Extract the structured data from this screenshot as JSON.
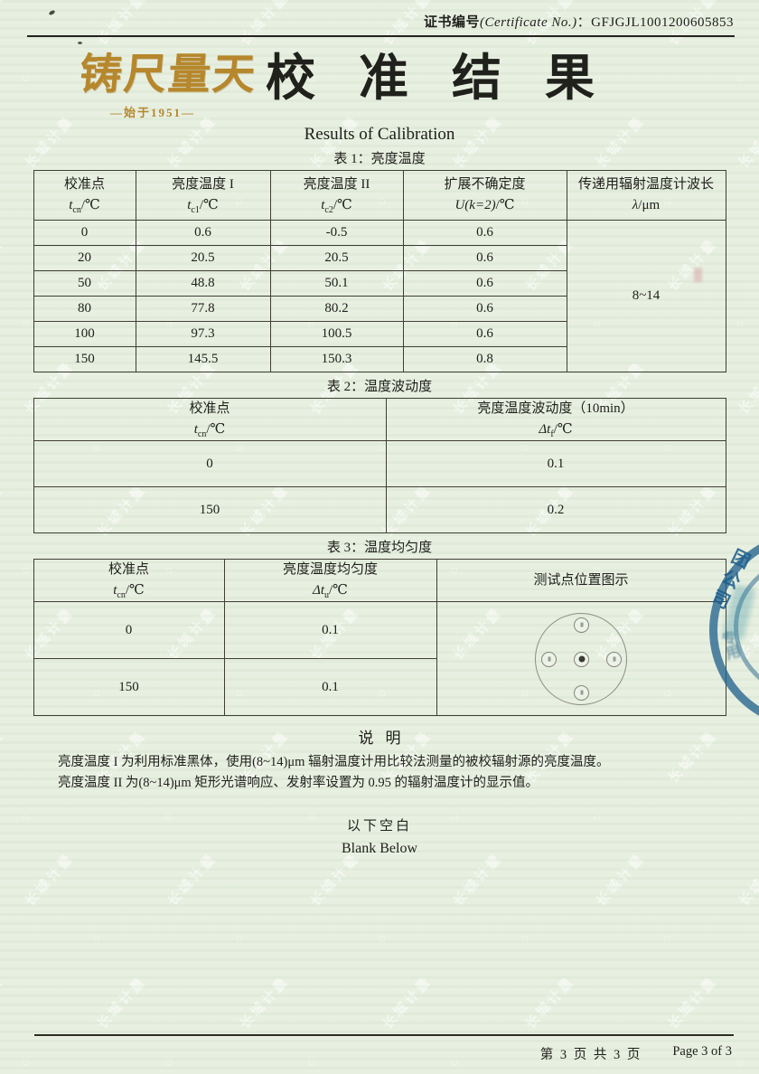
{
  "colors": {
    "paper": "#e7efe0",
    "gold": "#b6872c",
    "ink": "#20201c",
    "seal_blue": "#25648e"
  },
  "header": {
    "label_bold": "证书编号",
    "label_italic": "(Certificate No.)",
    "colon": "：",
    "number": "GFJGJL1001200605853"
  },
  "logo": {
    "brand": "铸尺量天",
    "since": "—始于1951—"
  },
  "title": {
    "cn": "校准结果",
    "en": "Results of Calibration"
  },
  "table1": {
    "caption": "表 1：亮度温度",
    "headers": [
      {
        "label": "校准点",
        "pre": "t",
        "sub": "cn",
        "post": "/℃"
      },
      {
        "label": "亮度温度 I",
        "pre": "t",
        "sub": "c1",
        "post": "/℃"
      },
      {
        "label": "亮度温度 II",
        "pre": "t",
        "sub": "c2",
        "post": "/℃"
      },
      {
        "label": "扩展不确定度",
        "pre": "U(k=2)",
        "sub": "",
        "post": "/℃"
      },
      {
        "label": "传递用辐射温度计波长",
        "pre": "λ",
        "sub": "",
        "post": "/μm"
      }
    ],
    "rows": [
      [
        "0",
        "0.6",
        "-0.5",
        "0.6"
      ],
      [
        "20",
        "20.5",
        "20.5",
        "0.6"
      ],
      [
        "50",
        "48.8",
        "50.1",
        "0.6"
      ],
      [
        "80",
        "77.8",
        "80.2",
        "0.6"
      ],
      [
        "100",
        "97.3",
        "100.5",
        "0.6"
      ],
      [
        "150",
        "145.5",
        "150.3",
        "0.8"
      ]
    ],
    "wavelength_span": "8~14"
  },
  "table2": {
    "caption": "表 2：温度波动度",
    "headers": [
      {
        "label": "校准点",
        "pre": "t",
        "sub": "cn",
        "post": "/℃"
      },
      {
        "label": "亮度温度波动度（10min）",
        "pre": "Δt",
        "sub": "f",
        "post": "/℃"
      }
    ],
    "rows": [
      [
        "0",
        "0.1"
      ],
      [
        "150",
        "0.2"
      ]
    ]
  },
  "table3": {
    "caption": "表 3：温度均匀度",
    "headers": [
      {
        "label": "校准点",
        "pre": "t",
        "sub": "cn",
        "post": "/℃"
      },
      {
        "label": "亮度温度均匀度",
        "pre": "Δt",
        "sub": "u",
        "post": "/℃"
      },
      {
        "label": "测试点位置图示",
        "pre": "",
        "sub": "",
        "post": ""
      }
    ],
    "rows": [
      [
        "0",
        "0.1"
      ],
      [
        "150",
        "0.1"
      ]
    ]
  },
  "notes": {
    "heading": "说明",
    "line1": "亮度温度 I 为利用标准黑体，使用(8~14)μm 辐射温度计用比较法测量的被校辐射源的亮度温度。",
    "line2": "亮度温度 II 为(8~14)μm 矩形光谱响应、发射率设置为 0.95 的辐射温度计的显示值。"
  },
  "blank": {
    "cn": "以下空白",
    "en": "Blank Below"
  },
  "stamp": {
    "fragment1": "团公司",
    "fragment2": "专用"
  },
  "watermark": {
    "text": "长城计量"
  },
  "footer": {
    "cn": "第 3 页 共 3 页",
    "en": "Page 3 of 3"
  }
}
